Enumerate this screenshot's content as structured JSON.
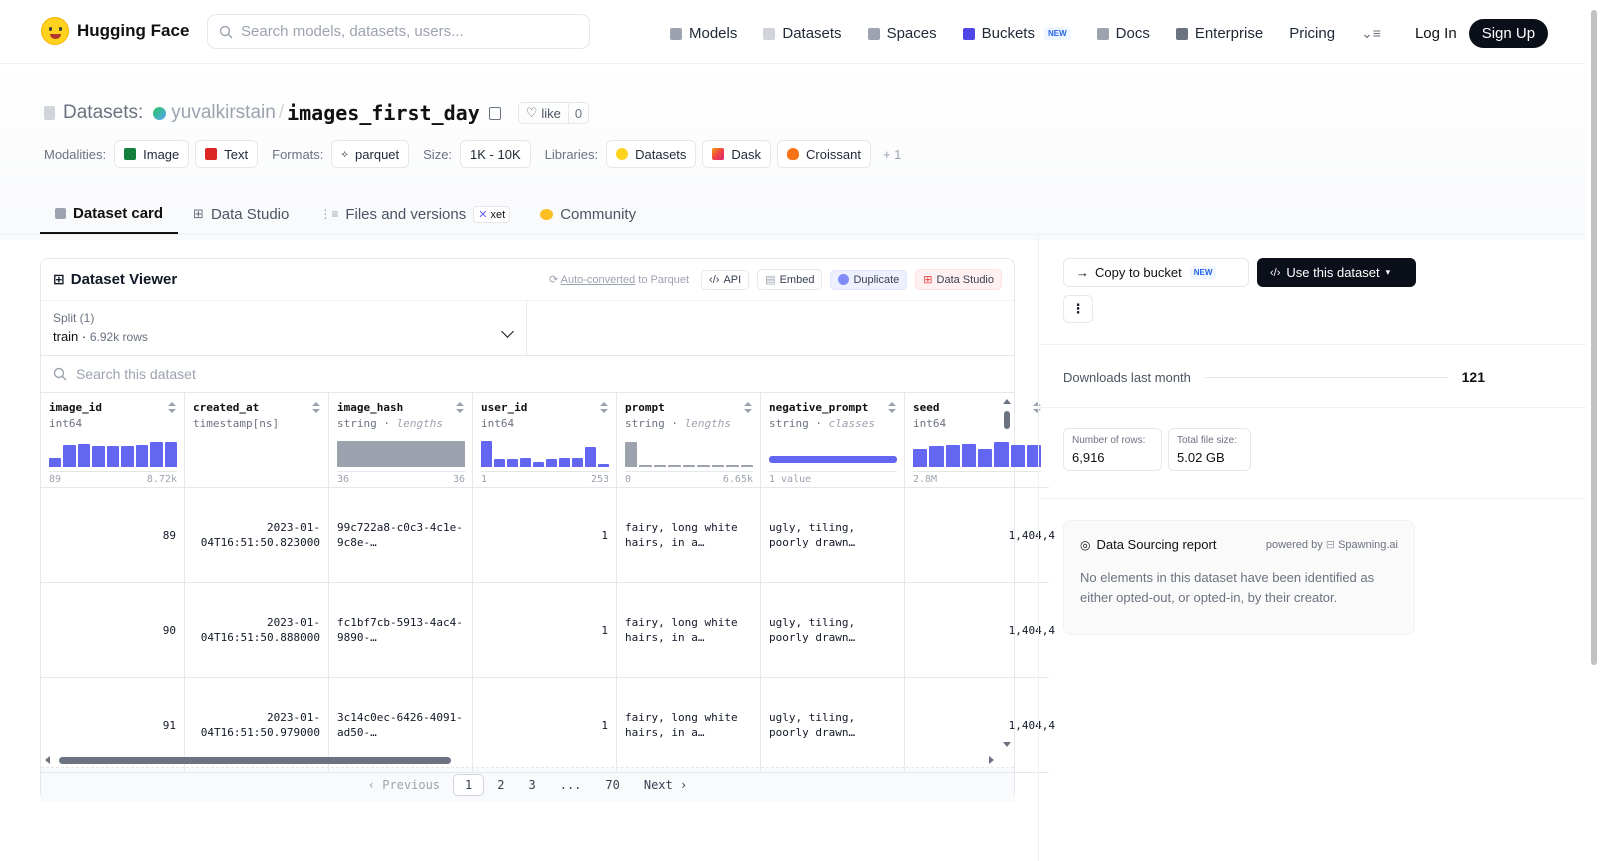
{
  "header": {
    "brand": "Hugging Face",
    "search_placeholder": "Search models, datasets, users...",
    "nav": [
      {
        "label": "Models",
        "color": "#9ca3af"
      },
      {
        "label": "Datasets",
        "color": "#d1d5db"
      },
      {
        "label": "Spaces",
        "color": "#9ca3af"
      },
      {
        "label": "Buckets",
        "color": "#4f46e5",
        "badge": "NEW"
      },
      {
        "label": "Docs",
        "color": "#9ca3af"
      },
      {
        "label": "Enterprise",
        "color": "#6b7280"
      },
      {
        "label": "Pricing"
      }
    ],
    "login": "Log In",
    "signup": "Sign Up"
  },
  "repo": {
    "type_label": "Datasets:",
    "user": "yuvalkirstain",
    "sep": "/",
    "name": "images_first_day",
    "like_label": "like",
    "like_count": "0"
  },
  "meta": {
    "modalities_label": "Modalities:",
    "modalities": [
      "Image",
      "Text"
    ],
    "formats_label": "Formats:",
    "format": "parquet",
    "size_label": "Size:",
    "size": "1K - 10K",
    "libraries_label": "Libraries:",
    "libraries": [
      "Datasets",
      "Dask",
      "Croissant"
    ],
    "more": "+ 1"
  },
  "tabs": [
    {
      "label": "Dataset card",
      "active": true
    },
    {
      "label": "Data Studio"
    },
    {
      "label": "Files and versions",
      "badge": "xet"
    },
    {
      "label": "Community"
    }
  ],
  "viewer": {
    "title": "Dataset Viewer",
    "auto_converted": "Auto-converted",
    "auto_suffix": " to Parquet",
    "api": "API",
    "embed": "Embed",
    "duplicate": "Duplicate",
    "data_studio": "Data Studio",
    "split_label": "Split (1)",
    "split_name": "train",
    "split_rows": "6.92k rows",
    "search_placeholder": "Search this dataset",
    "columns": [
      {
        "name": "image_id",
        "type": "int64",
        "kind": "",
        "hist": [
          0.35,
          0.85,
          0.9,
          0.8,
          0.8,
          0.8,
          0.85,
          0.95,
          0.95
        ],
        "gray": false,
        "min": "89",
        "max": "8.72k",
        "cells": [
          "89",
          "90",
          "91"
        ],
        "align": "r"
      },
      {
        "name": "created_at",
        "type": "timestamp[ns]",
        "kind": "",
        "hist": [],
        "gray": false,
        "min": "",
        "max": "",
        "cells": [
          "2023-01-04T16:51:50.823000",
          "2023-01-04T16:51:50.888000",
          "2023-01-04T16:51:50.979000"
        ],
        "align": "r"
      },
      {
        "name": "image_hash",
        "type": "string",
        "kind": "lengths",
        "hist": [
          1
        ],
        "gray": true,
        "min": "36",
        "max": "36",
        "cells": [
          "99c722a8-c0c3-4c1e-9c8e-…",
          "fc1bf7cb-5913-4ac4-9890-…",
          "3c14c0ec-6426-4091-ad50-…"
        ],
        "align": "l"
      },
      {
        "name": "user_id",
        "type": "int64",
        "kind": "",
        "hist": [
          1,
          0.3,
          0.3,
          0.35,
          0.2,
          0.3,
          0.35,
          0.35,
          0.75,
          0.1
        ],
        "gray": false,
        "min": "1",
        "max": "253",
        "cells": [
          "1",
          "1",
          "1"
        ],
        "align": "r"
      },
      {
        "name": "prompt",
        "type": "string",
        "kind": "lengths",
        "hist": [
          0.95,
          0.05,
          0.04,
          0.03,
          0.02,
          0.02,
          0.04,
          0.02,
          0.03
        ],
        "gray": true,
        "min": "0",
        "max": "6.65k",
        "cells": [
          "fairy, long white hairs, in a…",
          "fairy, long white hairs, in a…",
          "fairy, long white hairs, in a…"
        ],
        "align": "l"
      },
      {
        "name": "negative_prompt",
        "type": "string",
        "kind": "classes",
        "hist": [
          0.28
        ],
        "gray": false,
        "min": "1 value",
        "max": "",
        "cells": [
          "ugly, tiling, poorly drawn…",
          "ugly, tiling, poorly drawn…",
          "ugly, tiling, poorly drawn…"
        ],
        "align": "l"
      },
      {
        "name": "seed",
        "type": "int64",
        "kind": "",
        "hist": [
          0.7,
          0.8,
          0.85,
          0.9,
          0.7,
          0.95,
          0.85,
          0.85
        ],
        "gray": false,
        "min": "2.8M",
        "max": "",
        "cells": [
          "1,404,4",
          "1,404,4",
          "1,404,4"
        ],
        "align": "r"
      }
    ],
    "pager": {
      "prev": "‹ Previous",
      "pages": [
        "1",
        "2",
        "3",
        "...",
        "70"
      ],
      "next": "Next ›"
    }
  },
  "sidebar": {
    "copy_bucket": "Copy to bucket",
    "copy_badge": "NEW",
    "use_dataset": "Use this dataset",
    "downloads_label": "Downloads last month",
    "downloads": "121",
    "rows_label": "Number of rows:",
    "rows": "6,916",
    "size_label": "Total file size:",
    "size": "5.02 GB",
    "report_title": "Data Sourcing report",
    "powered_by": "powered by",
    "powered_name": "Spawning.ai",
    "report_text": "No elements in this dataset have been identified as either opted-out, or opted-in, by their creator."
  }
}
